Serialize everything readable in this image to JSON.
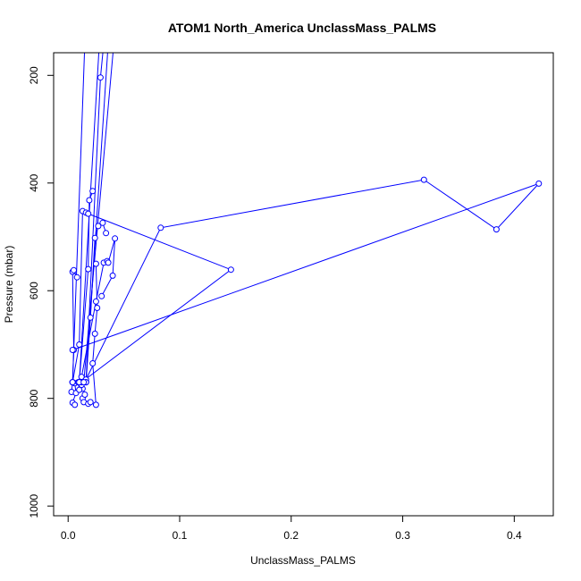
{
  "chart_data": {
    "type": "line",
    "title": "ATOM1 North_America UnclassMass_PALMS",
    "xlabel": "UnclassMass_PALMS",
    "ylabel": "Pressure (mbar)",
    "xlim": [
      -0.013,
      0.435
    ],
    "ylim": [
      1018,
      158
    ],
    "y_reversed": true,
    "grid": false,
    "legend": "none",
    "x_ticks": [
      0.0,
      0.1,
      0.2,
      0.3,
      0.4
    ],
    "x_tick_labels": [
      "0.0",
      "0.1",
      "0.2",
      "0.3",
      "0.4"
    ],
    "y_ticks": [
      200,
      400,
      600,
      800,
      1000
    ],
    "y_tick_labels": [
      "200",
      "400",
      "600",
      "800",
      "1000"
    ],
    "series": [
      {
        "color": "#0000ff",
        "segments": [
          [
            [
              0.003,
              788
            ],
            [
              0.004,
              770
            ],
            [
              0.006,
              772
            ],
            [
              0.007,
              790
            ],
            [
              0.004,
              808
            ],
            [
              0.006,
              812
            ]
          ],
          [
            [
              0.013,
              782
            ],
            [
              0.012,
              775
            ],
            [
              0.01,
              770
            ],
            [
              0.009,
              770
            ],
            [
              0.01,
              784
            ]
          ],
          [
            [
              0.013,
              800
            ],
            [
              0.015,
              793
            ],
            [
              0.014,
              807
            ],
            [
              0.018,
              810
            ],
            [
              0.02,
              807
            ]
          ],
          [
            [
              0.025,
              812
            ],
            [
              0.022,
              735
            ],
            [
              0.024,
              680
            ],
            [
              0.026,
              632
            ],
            [
              0.025,
              550
            ]
          ],
          [
            [
              0.004,
              770
            ],
            [
              0.005,
              710
            ],
            [
              0.004,
              565
            ],
            [
              0.005,
              562
            ],
            [
              0.008,
              575
            ]
          ],
          [
            [
              0.004,
              770
            ],
            [
              0.01,
              700
            ],
            [
              0.013,
              452
            ],
            [
              0.016,
              455
            ]
          ],
          [
            [
              0.01,
              770
            ],
            [
              0.018,
              560
            ],
            [
              0.019,
              432
            ],
            [
              0.022,
              415
            ]
          ],
          [
            [
              0.016,
              770
            ],
            [
              0.02,
              650
            ],
            [
              0.024,
              502
            ],
            [
              0.027,
              480
            ],
            [
              0.031,
              474
            ],
            [
              0.034,
              493
            ]
          ],
          [
            [
              0.012,
              760
            ],
            [
              0.025,
              620
            ],
            [
              0.032,
              548
            ],
            [
              0.035,
              545
            ],
            [
              0.036,
              548
            ],
            [
              0.042,
              503
            ],
            [
              0.04,
              572
            ],
            [
              0.03,
              610
            ]
          ],
          [
            [
              0.004,
              710
            ],
            [
              0.422,
              401
            ],
            [
              0.384,
              486
            ],
            [
              0.319,
              394
            ],
            [
              0.083,
              483
            ],
            [
              0.016,
              765
            ]
          ],
          [
            [
              0.018,
              457
            ],
            [
              0.146,
              561
            ],
            [
              0.012,
              770
            ]
          ],
          [
            [
              0.004,
              770
            ],
            [
              0.015,
              140
            ]
          ],
          [
            [
              0.01,
              770
            ],
            [
              0.028,
              140
            ]
          ],
          [
            [
              0.016,
              770
            ],
            [
              0.029,
              204
            ],
            [
              0.032,
              140
            ]
          ],
          [
            [
              0.016,
              770
            ],
            [
              0.036,
              140
            ]
          ],
          [
            [
              0.014,
              770
            ],
            [
              0.041,
              140
            ]
          ]
        ]
      }
    ]
  }
}
